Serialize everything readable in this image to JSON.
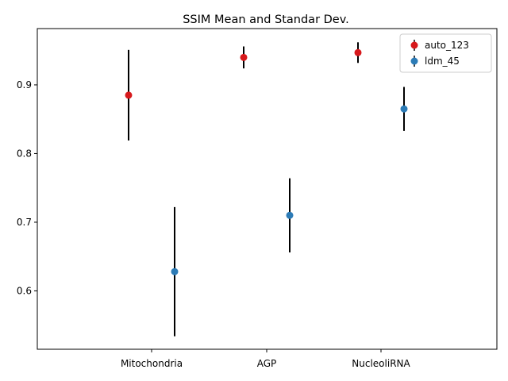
{
  "chart_data": {
    "type": "errorbar",
    "title": "SSIM Mean and Standar Dev.",
    "xlabel": "",
    "ylabel": "",
    "categories": [
      "Mitochondria",
      "AGP",
      "NucleoliRNA"
    ],
    "yticks": [
      "0.6",
      "0.7",
      "0.8",
      "0.9"
    ],
    "ylim": [
      0.515,
      0.982
    ],
    "grid": false,
    "legend_position": "upper right",
    "series": [
      {
        "name": "auto_123",
        "color": "#d7191c",
        "mean": [
          0.885,
          0.94,
          0.947
        ],
        "std": [
          0.066,
          0.016,
          0.015
        ]
      },
      {
        "name": "ldm_45",
        "color": "#2c7bb6",
        "mean": [
          0.628,
          0.71,
          0.865
        ],
        "std": [
          0.094,
          0.054,
          0.032
        ]
      }
    ]
  }
}
